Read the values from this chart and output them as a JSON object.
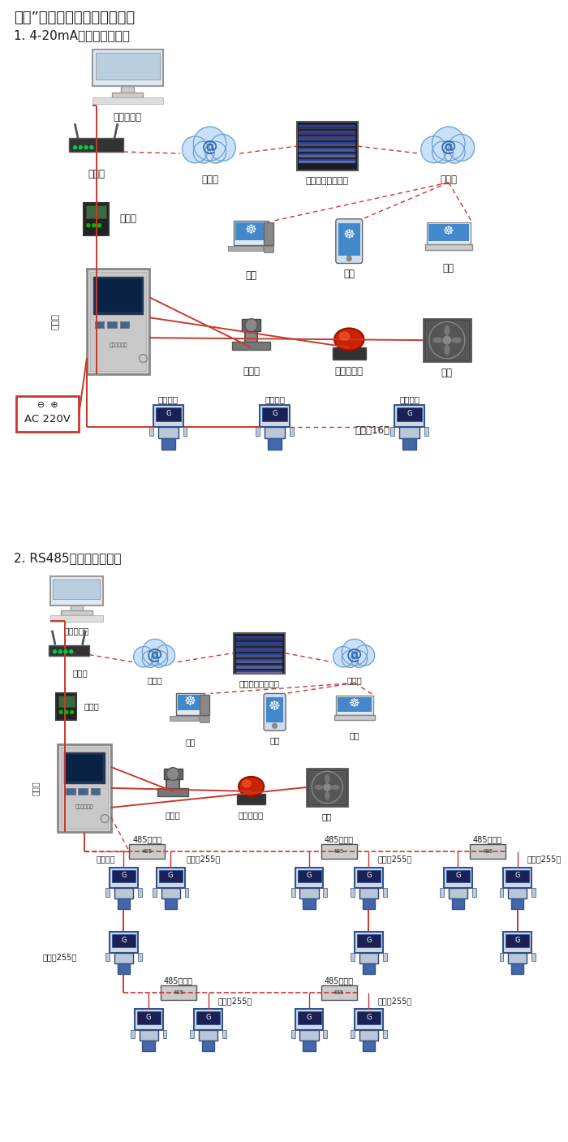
{
  "bg_color": "#ffffff",
  "red": "#c8392b",
  "dark_red": "#cc3333",
  "title1": "大众”系列带显示固定式检测仪",
  "subtitle1": "1. 4-20mA信号连接系统图",
  "subtitle2": "2. RS485信号连接系统图",
  "label_computer1": "单机版电脑",
  "label_router1": "路由器",
  "label_inet1a": "互联网",
  "label_server1": "安帕尔网络服务器",
  "label_inet1b": "互联网",
  "label_conv1": "转换器",
  "label_tongxun": "通讯线",
  "label_pc1": "电脑",
  "label_phone1": "手机",
  "label_term1": "终端",
  "label_valve1": "电磁阀",
  "label_alarm1": "声光报警器",
  "label_fan1": "风机",
  "label_ac": "AC 220V",
  "label_sig1": "信号输出",
  "label_sig2": "信号输出",
  "label_sig3": "信号输出",
  "label_con16": "可连接16个",
  "label_computer2": "单机版电脑",
  "label_router2": "路由器",
  "label_inet2a": "互联网",
  "label_server2": "安帕尔网络服务器",
  "label_inet2b": "互联网",
  "label_conv2": "转换器",
  "label_tongxun2": "通讯线",
  "label_pc2": "电脑",
  "label_phone2": "手机",
  "label_term2": "终端",
  "label_valve2": "电磁阀",
  "label_alarm2": "声光报警器",
  "label_fan2": "风机",
  "label_485_1": "485中继器",
  "label_485_2": "485中继器",
  "label_485_3": "485中继器",
  "label_485_4": "485中继器",
  "label_485_5": "485中继器",
  "label_255_1": "可连接255台",
  "label_255_2": "可连接255台",
  "label_255_3": "可连接255台",
  "label_255_4": "可连接255台",
  "label_255_5": "可连接255台",
  "label_sigout2": "信号输出"
}
